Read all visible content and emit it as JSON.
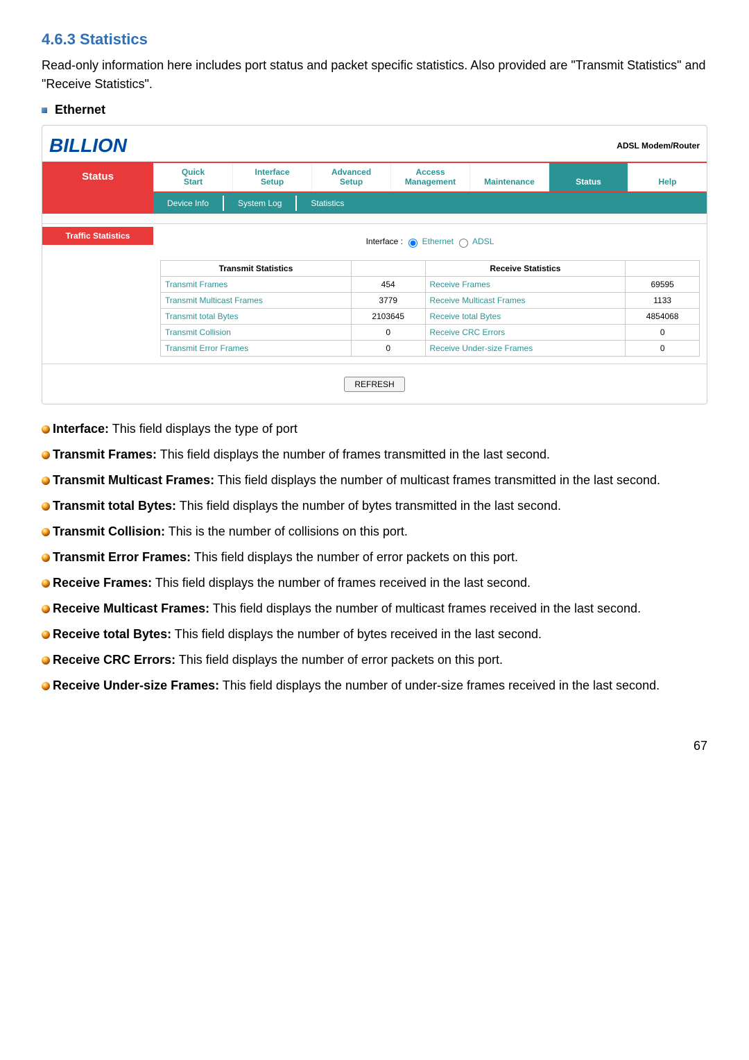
{
  "section_number": "4.6.3 Statistics",
  "intro": "Read-only information here includes port status and packet specific statistics. Also provided are \"Transmit Statistics\" and \"Receive Statistics\".",
  "subhead": "Ethernet",
  "brand": "BILLION",
  "device_type": "ADSL Modem/Router",
  "status_label": "Status",
  "nav": {
    "t1a": "Quick",
    "t1b": "Start",
    "t2a": "Interface",
    "t2b": "Setup",
    "t3a": "Advanced",
    "t3b": "Setup",
    "t4a": "Access",
    "t4b": "Management",
    "t5": "Maintenance",
    "t6": "Status",
    "t7": "Help"
  },
  "subtabs": {
    "a": "Device Info",
    "b": "System Log",
    "c": "Statistics"
  },
  "side_label": "Traffic Statistics",
  "iface_label": "Interface :",
  "iface_opt1": "Ethernet",
  "iface_opt2": "ADSL",
  "th_tx": "Transmit Statistics",
  "th_rx": "Receive Statistics",
  "rows": {
    "r1tx": "Transmit Frames",
    "r1txv": "454",
    "r1rx": "Receive Frames",
    "r1rxv": "69595",
    "r2tx": "Transmit Multicast Frames",
    "r2txv": "3779",
    "r2rx": "Receive Multicast Frames",
    "r2rxv": "1133",
    "r3tx": "Transmit total Bytes",
    "r3txv": "2103645",
    "r3rx": "Receive total Bytes",
    "r3rxv": "4854068",
    "r4tx": "Transmit Collision",
    "r4txv": "0",
    "r4rx": "Receive CRC Errors",
    "r4rxv": "0",
    "r5tx": "Transmit Error Frames",
    "r5txv": "0",
    "r5rx": "Receive Under-size Frames",
    "r5rxv": "0"
  },
  "refresh": "REFRESH",
  "desc": {
    "d1b": "Interface:",
    "d1": " This field displays the type of port",
    "d2b": "Transmit Frames:",
    "d2": " This field displays the number of frames transmitted in the last second.",
    "d3b": "Transmit Multicast Frames:",
    "d3": " This field displays the number of multicast frames transmitted in the last second.",
    "d4b": "Transmit total Bytes:",
    "d4": " This field displays the number of bytes transmitted in the last second.",
    "d5b": "Transmit Collision:",
    "d5": " This is the number of collisions on this port.",
    "d6b": "Transmit Error Frames:",
    "d6": " This field displays the number of error packets on this port.",
    "d7b": "Receive Frames:",
    "d7": " This field displays the number of frames received in the last second.",
    "d8b": "Receive Multicast Frames:",
    "d8": " This field displays the number of multicast frames received in the last second.",
    "d9b": "Receive total Bytes:",
    "d9": " This field displays the number of bytes received in the last second.",
    "d10b": "Receive CRC Errors:",
    "d10": " This field displays the number of error packets on this port.",
    "d11b": "Receive Under-size Frames:",
    "d11": " This field displays the number of under-size frames received in the last second."
  },
  "page": "67"
}
